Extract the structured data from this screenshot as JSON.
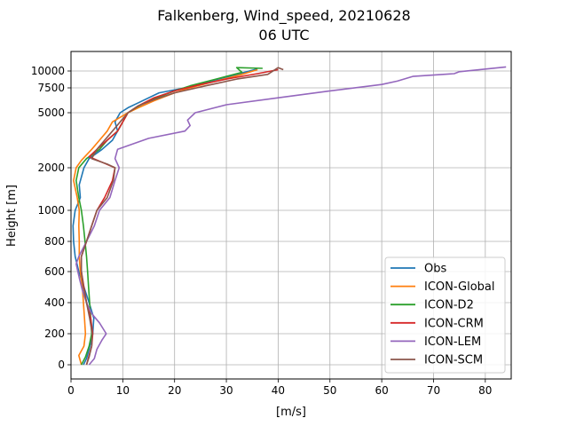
{
  "chart_data": {
    "type": "line",
    "title": "Falkenberg, Wind_speed, 20210628",
    "subtitle": "06 UTC",
    "xlabel": "[m/s]",
    "ylabel": "Height [m]",
    "xlim": [
      0,
      85
    ],
    "x_ticks": [
      0,
      10,
      20,
      30,
      40,
      50,
      60,
      70,
      80
    ],
    "y_ticks": [
      0,
      200,
      400,
      600,
      800,
      1000,
      2000,
      5000,
      7500,
      10000
    ],
    "y_scale": "piecewise",
    "grid": true,
    "legend": "lower-right",
    "series": [
      {
        "name": "Obs",
        "color": "#1f77b4",
        "points": [
          [
            2.4,
            0
          ],
          [
            3,
            40
          ],
          [
            3.5,
            100
          ],
          [
            4.2,
            200
          ],
          [
            4.4,
            300
          ],
          [
            3.5,
            400
          ],
          [
            2.5,
            500
          ],
          [
            1.5,
            600
          ],
          [
            0.8,
            700
          ],
          [
            0.5,
            800
          ],
          [
            0.4,
            900
          ],
          [
            0.8,
            1000
          ],
          [
            1.8,
            1300
          ],
          [
            1.6,
            1600
          ],
          [
            2.5,
            2000
          ],
          [
            3.5,
            2500
          ],
          [
            6,
            3000
          ],
          [
            8,
            3500
          ],
          [
            9,
            4000
          ],
          [
            8.5,
            4500
          ],
          [
            9.5,
            5000
          ],
          [
            11,
            5500
          ],
          [
            13,
            6000
          ],
          [
            17,
            7000
          ],
          [
            22,
            7500
          ],
          [
            27,
            8500
          ],
          [
            32,
            9500
          ],
          [
            36,
            10300
          ]
        ]
      },
      {
        "name": "ICON-Global",
        "color": "#ff7f0e",
        "points": [
          [
            2,
            0
          ],
          [
            1.5,
            60
          ],
          [
            2.5,
            120
          ],
          [
            2.8,
            200
          ],
          [
            2.6,
            300
          ],
          [
            2.4,
            400
          ],
          [
            2.2,
            500
          ],
          [
            1.8,
            600
          ],
          [
            1.6,
            700
          ],
          [
            1.6,
            800
          ],
          [
            1.5,
            900
          ],
          [
            1.6,
            1000
          ],
          [
            1.2,
            1300
          ],
          [
            0.5,
            1700
          ],
          [
            1,
            2000
          ],
          [
            2,
            2400
          ],
          [
            4,
            3000
          ],
          [
            5.5,
            3500
          ],
          [
            7,
            4000
          ],
          [
            8,
            4500
          ],
          [
            11,
            5000
          ],
          [
            13,
            5500
          ],
          [
            16,
            6200
          ],
          [
            20,
            7000
          ],
          [
            23,
            7500
          ],
          [
            28,
            8500
          ],
          [
            33,
            9500
          ],
          [
            36,
            10200
          ]
        ]
      },
      {
        "name": "ICON-D2",
        "color": "#2ca02c",
        "points": [
          [
            2,
            0
          ],
          [
            2.8,
            50
          ],
          [
            3.5,
            120
          ],
          [
            4,
            200
          ],
          [
            3.8,
            300
          ],
          [
            3.6,
            400
          ],
          [
            3.4,
            500
          ],
          [
            3.2,
            600
          ],
          [
            3,
            700
          ],
          [
            2.7,
            800
          ],
          [
            2.4,
            900
          ],
          [
            2,
            1000
          ],
          [
            1.5,
            1300
          ],
          [
            1,
            1700
          ],
          [
            1.5,
            2000
          ],
          [
            3,
            2500
          ],
          [
            5.5,
            3000
          ],
          [
            7,
            3500
          ],
          [
            9,
            4000
          ],
          [
            11,
            5000
          ],
          [
            12.5,
            5500
          ],
          [
            15,
            6200
          ],
          [
            20,
            7200
          ],
          [
            23,
            7800
          ],
          [
            28,
            8800
          ],
          [
            33,
            9800
          ],
          [
            32,
            10500
          ],
          [
            37,
            10400
          ]
        ]
      },
      {
        "name": "ICON-CRM",
        "color": "#d62728",
        "points": [
          [
            3,
            0
          ],
          [
            3.5,
            60
          ],
          [
            4,
            120
          ],
          [
            4.2,
            200
          ],
          [
            3.8,
            300
          ],
          [
            3,
            400
          ],
          [
            2.5,
            500
          ],
          [
            2,
            600
          ],
          [
            2,
            700
          ],
          [
            3,
            800
          ],
          [
            4,
            900
          ],
          [
            5,
            1000
          ],
          [
            6.5,
            1300
          ],
          [
            8,
            1700
          ],
          [
            8.5,
            2000
          ],
          [
            6,
            2300
          ],
          [
            3.5,
            2600
          ],
          [
            5,
            3000
          ],
          [
            7,
            3500
          ],
          [
            9,
            4000
          ],
          [
            11,
            5000
          ],
          [
            13,
            5700
          ],
          [
            16,
            6500
          ],
          [
            20,
            7200
          ],
          [
            25,
            8000
          ],
          [
            30,
            8800
          ],
          [
            36,
            9600
          ],
          [
            40,
            10200
          ]
        ]
      },
      {
        "name": "ICON-LEM",
        "color": "#9467bd",
        "points": [
          [
            3.5,
            0
          ],
          [
            4.5,
            40
          ],
          [
            5,
            100
          ],
          [
            6,
            160
          ],
          [
            6.8,
            200
          ],
          [
            5.5,
            270
          ],
          [
            4,
            330
          ],
          [
            3,
            400
          ],
          [
            2.2,
            480
          ],
          [
            1.6,
            560
          ],
          [
            1,
            650
          ],
          [
            1.5,
            700
          ],
          [
            3,
            800
          ],
          [
            4.5,
            900
          ],
          [
            5.5,
            1000
          ],
          [
            7.5,
            1300
          ],
          [
            8.5,
            1700
          ],
          [
            9.3,
            2000
          ],
          [
            8.5,
            2500
          ],
          [
            9,
            3000
          ],
          [
            15,
            3600
          ],
          [
            22,
            4000
          ],
          [
            23,
            4300
          ],
          [
            22.5,
            4600
          ],
          [
            24,
            5000
          ],
          [
            30,
            5800
          ],
          [
            40,
            6500
          ],
          [
            50,
            7200
          ],
          [
            60,
            8000
          ],
          [
            63,
            8500
          ],
          [
            66,
            9200
          ],
          [
            74,
            9600
          ],
          [
            75,
            9900
          ],
          [
            84,
            10600
          ]
        ]
      },
      {
        "name": "ICON-SCM",
        "color": "#8c564b",
        "points": [
          [
            3,
            0
          ],
          [
            3.5,
            50
          ],
          [
            4,
            120
          ],
          [
            4.1,
            200
          ],
          [
            3.6,
            300
          ],
          [
            3,
            400
          ],
          [
            2.4,
            500
          ],
          [
            2,
            600
          ],
          [
            2,
            700
          ],
          [
            3,
            800
          ],
          [
            4,
            900
          ],
          [
            5,
            1000
          ],
          [
            7,
            1300
          ],
          [
            8.2,
            1700
          ],
          [
            8.5,
            2000
          ],
          [
            7,
            2200
          ],
          [
            4,
            2500
          ],
          [
            5,
            3000
          ],
          [
            6.5,
            3500
          ],
          [
            8,
            4000
          ],
          [
            9.5,
            4500
          ],
          [
            11,
            5000
          ],
          [
            13,
            5700
          ],
          [
            16,
            6300
          ],
          [
            20,
            7000
          ],
          [
            26,
            7800
          ],
          [
            32,
            8800
          ],
          [
            38,
            9500
          ],
          [
            40,
            10500
          ],
          [
            41,
            10200
          ]
        ]
      }
    ]
  }
}
